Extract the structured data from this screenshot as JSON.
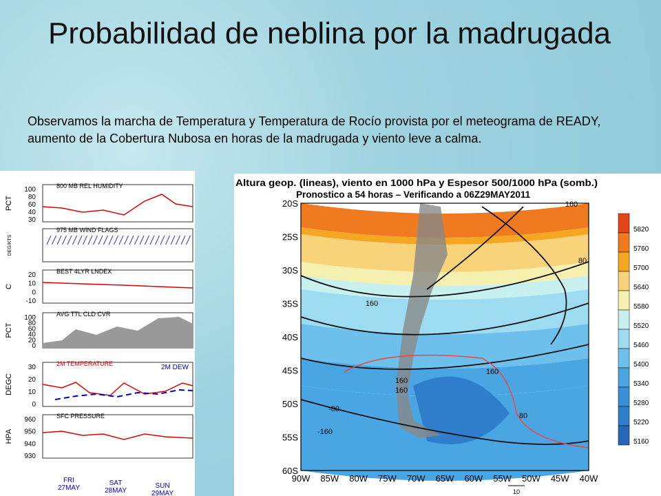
{
  "header": {
    "title": "Probabilidad de neblina por la madrugada"
  },
  "body": {
    "text": "Observamos la marcha de Temperatura y Temperatura de Rocío provista por el meteograma de READY, aumento de la Cobertura Nubosa en horas de la madrugada y viento leve a calma."
  },
  "meteogram": {
    "panels": [
      {
        "title": "800 MB REL HUMIDITY",
        "unit": "PCT",
        "ticks": [
          "100",
          "80",
          "60",
          "40",
          "30"
        ]
      },
      {
        "title": "975 MB WIND FLAGS",
        "unit": "DEG/KTS",
        "ticks": []
      },
      {
        "title": "BEST 4LYR LNDEX",
        "unit": "C",
        "ticks": [
          "20",
          "10",
          "0",
          "-10"
        ]
      },
      {
        "title": "AVG TTL CLD CVR",
        "unit": "PCT",
        "ticks": [
          "100",
          "80",
          "60",
          "40",
          "20",
          "0"
        ]
      },
      {
        "title": "2M TEMPERATURE",
        "title2": "2M  DEW",
        "unit": "DEGC",
        "ticks": [
          "30",
          "20",
          "10",
          "0"
        ]
      },
      {
        "title": "SFC PRESSURE",
        "unit": "HPA",
        "ticks": [
          "960",
          "950",
          "940",
          "930"
        ]
      }
    ],
    "days": [
      {
        "day": "FRI",
        "date": "27MAY"
      },
      {
        "day": "SAT",
        "date": "28MAY"
      },
      {
        "day": "SUN",
        "date": "29MAY"
      }
    ]
  },
  "map": {
    "title1": "Altura geop. (lineas), viento en 1000 hPa y Espesor 500/1000 hPa (somb.)",
    "title2": "Pronostico a 54 horas – Verificando a 06Z29MAY2011",
    "lat_labels": [
      "20S",
      "25S",
      "30S",
      "35S",
      "40S",
      "45S",
      "50S",
      "55S",
      "60S"
    ],
    "lon_labels": [
      "90W",
      "85W",
      "80W",
      "75W",
      "70W",
      "65W",
      "60W",
      "55W",
      "50W",
      "45W",
      "40W"
    ],
    "colorbar": [
      "5820",
      "5760",
      "5700",
      "5640",
      "5580",
      "5520",
      "5460",
      "5400",
      "5340",
      "5280",
      "5220",
      "5160"
    ],
    "contour_labels": [
      "160",
      "160",
      "160",
      "160",
      "80",
      "80",
      "-80",
      "-160",
      "160"
    ],
    "vector_ref": "10"
  }
}
